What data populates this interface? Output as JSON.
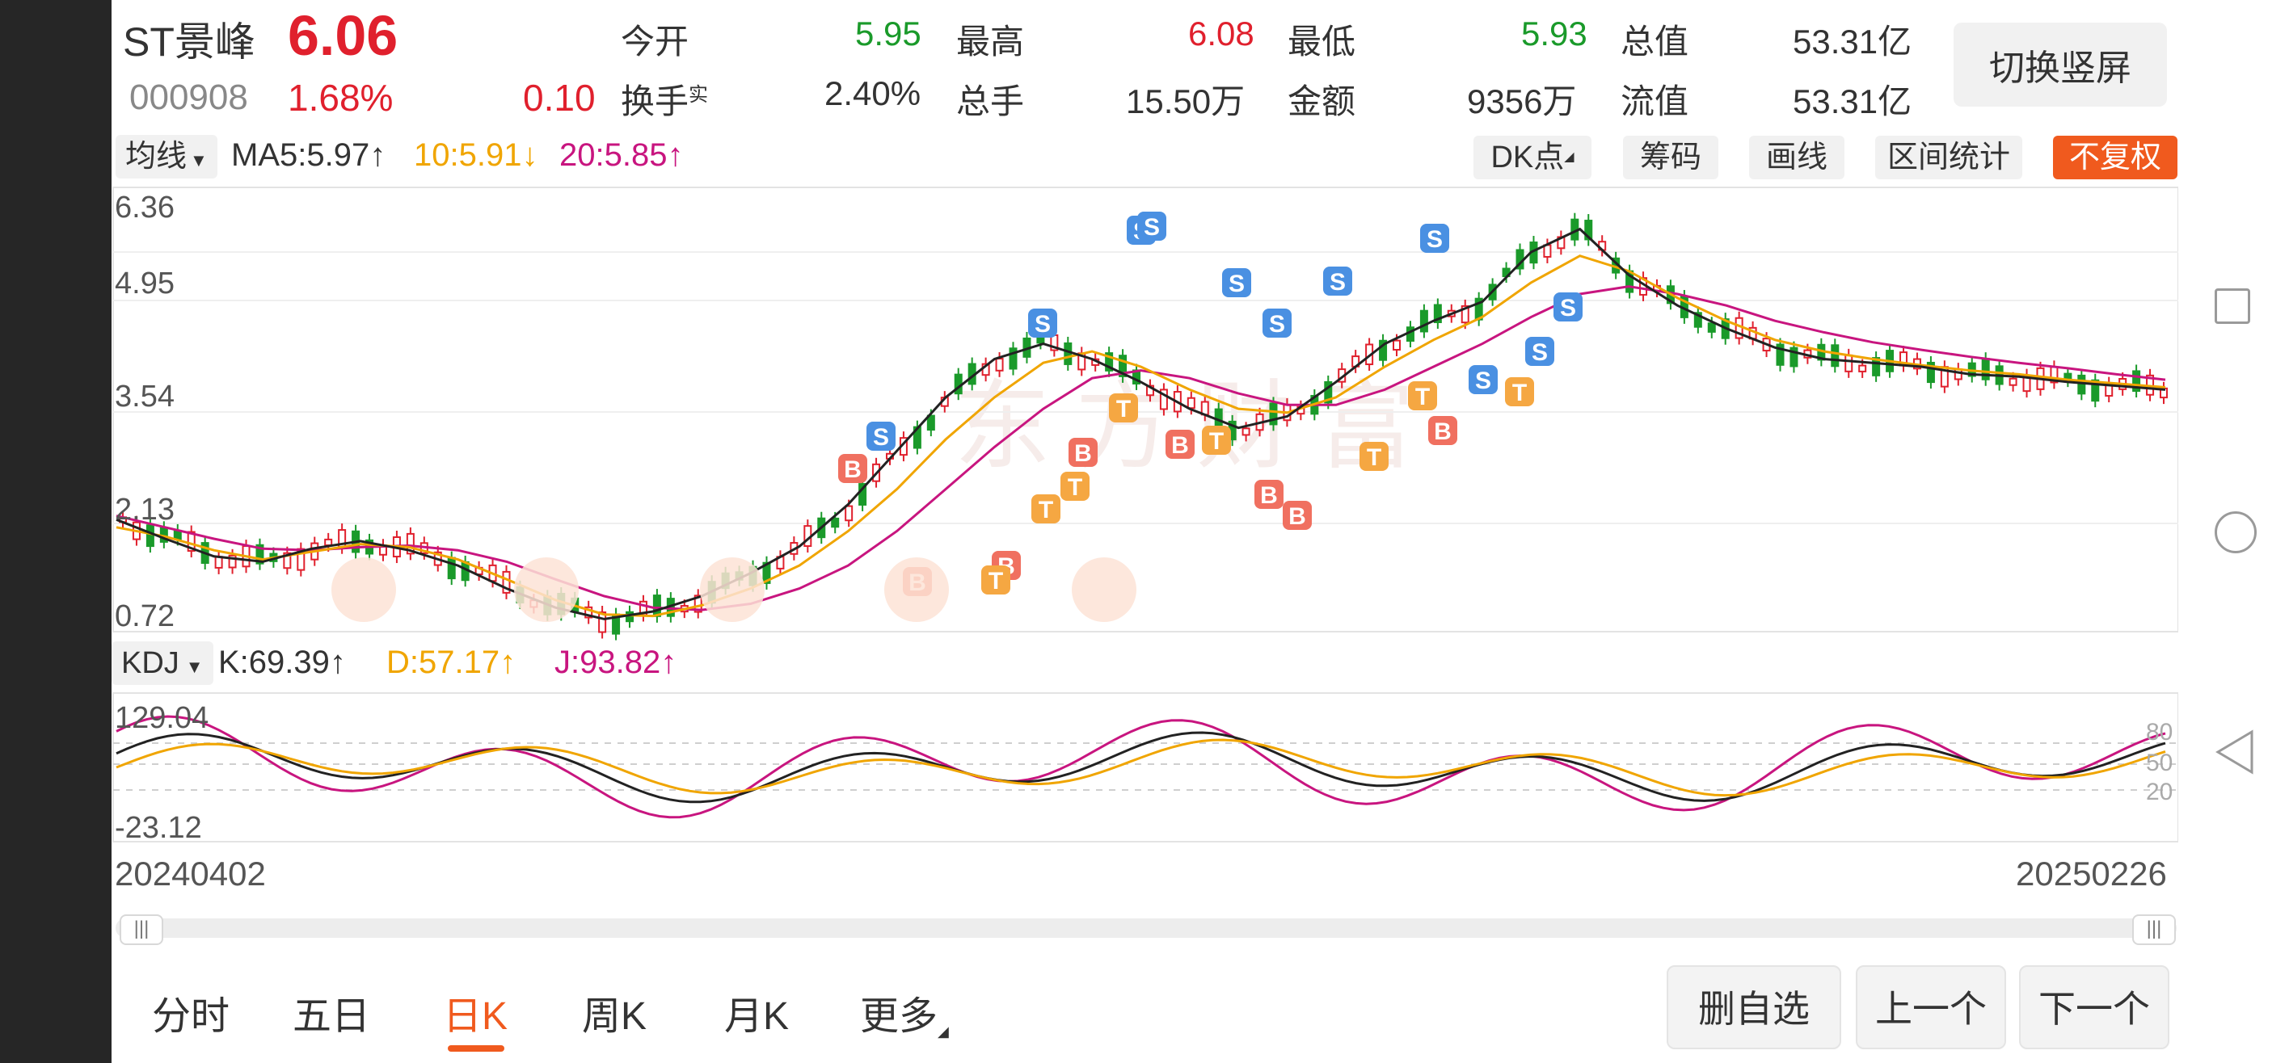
{
  "header": {
    "stock_name": "ST景峰",
    "price": "6.06",
    "code": "000908",
    "change_pct": "1.68%",
    "change_amt": "0.10",
    "stats": [
      {
        "label": "今开",
        "value": "5.95",
        "color": "#1a9a2a"
      },
      {
        "label": "最高",
        "value": "6.08",
        "color": "#e0202d"
      },
      {
        "label": "最低",
        "value": "5.93",
        "color": "#1a9a2a"
      },
      {
        "label": "总值",
        "value": "53.31亿",
        "color": "#333333"
      },
      {
        "label": "换手",
        "label_sup": "实",
        "value": "2.40%",
        "color": "#333333"
      },
      {
        "label": "总手",
        "value": "15.50万",
        "color": "#333333"
      },
      {
        "label": "金额",
        "value": "9356万",
        "color": "#333333"
      },
      {
        "label": "流值",
        "value": "53.31亿",
        "color": "#333333"
      }
    ],
    "switch_label": "切换竖屏"
  },
  "ma_bar": {
    "selector": "均线",
    "ma5": "MA5:5.97↑",
    "ma10": "10:5.91↓",
    "ma20": "20:5.85↑",
    "ma_colors": {
      "ma5": "#333333",
      "ma10": "#f0a500",
      "ma20": "#c8157f"
    },
    "tools": [
      "DK点",
      "筹码",
      "画线",
      "区间统计",
      "不复权"
    ]
  },
  "main_chart": {
    "y_ticks": [
      "6.36",
      "4.95",
      "3.54",
      "2.13",
      "0.72"
    ],
    "watermark": "东方财富"
  },
  "kdj_bar": {
    "selector": "KDJ",
    "k": "K:69.39↑",
    "d": "D:57.17↑",
    "j": "J:93.82↑",
    "colors": {
      "k": "#333333",
      "d": "#f0a500",
      "j": "#c8157f"
    },
    "y_ticks": [
      "129.04",
      "-23.12"
    ],
    "right_ticks": [
      "80",
      "50",
      "20"
    ]
  },
  "x_axis": {
    "start": "20240402",
    "end": "20250226"
  },
  "bottom_tabs": [
    {
      "label": "分时",
      "active": false
    },
    {
      "label": "五日",
      "active": false
    },
    {
      "label": "日K",
      "active": true
    },
    {
      "label": "周K",
      "active": false
    },
    {
      "label": "月K",
      "active": false
    },
    {
      "label": "更多",
      "active": false
    }
  ],
  "bottom_buttons": [
    "删自选",
    "上一个",
    "下一个"
  ],
  "chart_data": {
    "type": "candlestick",
    "title": "",
    "x_range": [
      "20240402",
      "20250226"
    ],
    "price_ylim": [
      0.72,
      6.36
    ],
    "ma5_approx": [
      2.1,
      1.85,
      1.62,
      1.55,
      1.72,
      1.82,
      1.7,
      1.5,
      1.2,
      0.95,
      0.8,
      0.9,
      1.1,
      1.4,
      1.75,
      2.3,
      3.0,
      3.7,
      4.2,
      4.4,
      4.2,
      3.9,
      3.55,
      3.3,
      3.45,
      3.9,
      4.4,
      4.7,
      4.95,
      5.6,
      5.9,
      5.3,
      4.9,
      4.6,
      4.35,
      4.2,
      4.15,
      4.1,
      4.0,
      3.97,
      3.9,
      3.85,
      3.8
    ],
    "ma10_approx": [
      2.0,
      1.88,
      1.7,
      1.58,
      1.68,
      1.78,
      1.74,
      1.58,
      1.32,
      1.05,
      0.86,
      0.84,
      0.98,
      1.2,
      1.5,
      1.95,
      2.5,
      3.15,
      3.7,
      4.15,
      4.3,
      4.1,
      3.8,
      3.55,
      3.5,
      3.7,
      4.1,
      4.45,
      4.75,
      5.2,
      5.55,
      5.35,
      5.0,
      4.7,
      4.45,
      4.3,
      4.2,
      4.12,
      4.05,
      4.0,
      3.93,
      3.88,
      3.83
    ],
    "ma20_approx": [
      2.15,
      2.0,
      1.85,
      1.72,
      1.7,
      1.74,
      1.76,
      1.7,
      1.55,
      1.32,
      1.1,
      0.95,
      0.92,
      1.0,
      1.2,
      1.5,
      1.95,
      2.5,
      3.05,
      3.55,
      3.95,
      4.05,
      3.95,
      3.75,
      3.6,
      3.6,
      3.8,
      4.1,
      4.4,
      4.75,
      5.05,
      5.15,
      5.05,
      4.9,
      4.7,
      4.55,
      4.42,
      4.32,
      4.23,
      4.15,
      4.08,
      4.0,
      3.93
    ],
    "kdj_ylim": [
      -23.12,
      129.04
    ]
  }
}
